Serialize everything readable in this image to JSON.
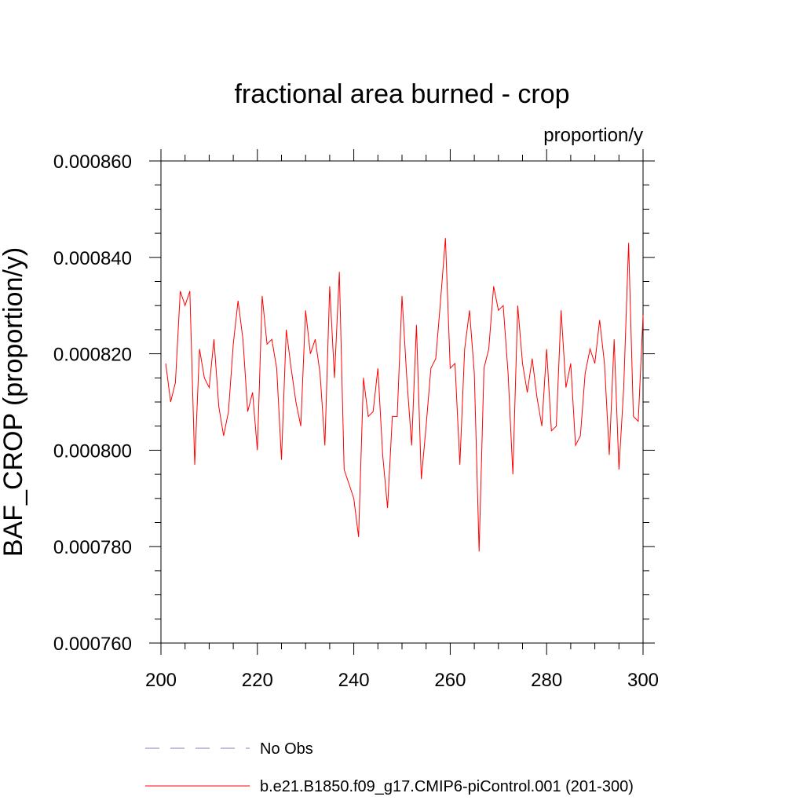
{
  "chart_data": {
    "type": "line",
    "title": "fractional area burned - crop",
    "units_label": "proportion/y",
    "ylabel": "BAF_CROP  (proportion/y)",
    "xlabel": "",
    "xlim": [
      200,
      300
    ],
    "ylim": [
      0.00076,
      0.00086
    ],
    "x_ticks": [
      200,
      220,
      240,
      260,
      280,
      300
    ],
    "x_tick_labels": [
      "200",
      "220",
      "240",
      "260",
      "280",
      "300"
    ],
    "y_ticks": [
      0.00076,
      0.00078,
      0.0008,
      0.00082,
      0.00084,
      0.00086
    ],
    "y_tick_labels": [
      "0.000760",
      "0.000780",
      "0.000800",
      "0.000820",
      "0.000840",
      "0.000860"
    ],
    "series": [
      {
        "name": "b.e21.B1850.f09_g17.CMIP6-piControl.001 (201-300)",
        "color": "#ff0000",
        "style": "solid",
        "x": [
          201,
          202,
          203,
          204,
          205,
          206,
          207,
          208,
          209,
          210,
          211,
          212,
          213,
          214,
          215,
          216,
          217,
          218,
          219,
          220,
          221,
          222,
          223,
          224,
          225,
          226,
          227,
          228,
          229,
          230,
          231,
          232,
          233,
          234,
          235,
          236,
          237,
          238,
          239,
          240,
          241,
          242,
          243,
          244,
          245,
          246,
          247,
          248,
          249,
          250,
          251,
          252,
          253,
          254,
          255,
          256,
          257,
          258,
          259,
          260,
          261,
          262,
          263,
          264,
          265,
          266,
          267,
          268,
          269,
          270,
          271,
          272,
          273,
          274,
          275,
          276,
          277,
          278,
          279,
          280,
          281,
          282,
          283,
          284,
          285,
          286,
          287,
          288,
          289,
          290,
          291,
          292,
          293,
          294,
          295,
          296,
          297,
          298,
          299,
          300
        ],
        "values": [
          0.000818,
          0.00081,
          0.000814,
          0.000833,
          0.00083,
          0.000833,
          0.000797,
          0.000821,
          0.000815,
          0.000813,
          0.000823,
          0.000809,
          0.000803,
          0.000808,
          0.000822,
          0.000831,
          0.000823,
          0.000808,
          0.000812,
          0.0008,
          0.000832,
          0.000822,
          0.000823,
          0.000817,
          0.000798,
          0.000825,
          0.000817,
          0.00081,
          0.000805,
          0.000829,
          0.00082,
          0.000823,
          0.000816,
          0.000801,
          0.000834,
          0.000815,
          0.000837,
          0.000796,
          0.000793,
          0.00079,
          0.000782,
          0.000815,
          0.000807,
          0.000808,
          0.000817,
          0.000799,
          0.000788,
          0.000807,
          0.000807,
          0.000832,
          0.000815,
          0.000801,
          0.000826,
          0.000794,
          0.000805,
          0.000817,
          0.000819,
          0.000831,
          0.000844,
          0.000817,
          0.000818,
          0.000797,
          0.000821,
          0.000829,
          0.000816,
          0.000779,
          0.000817,
          0.000821,
          0.000834,
          0.000829,
          0.00083,
          0.000816,
          0.000795,
          0.00083,
          0.000818,
          0.000812,
          0.000819,
          0.000811,
          0.000805,
          0.000821,
          0.000804,
          0.000805,
          0.000829,
          0.000813,
          0.000818,
          0.000801,
          0.000803,
          0.000816,
          0.000821,
          0.000818,
          0.000827,
          0.000818,
          0.000799,
          0.000823,
          0.000796,
          0.000813,
          0.000843,
          0.000807,
          0.000806,
          0.000828
        ]
      }
    ],
    "legend": [
      {
        "label": "No Obs",
        "color": "#8080c0",
        "style": "dashed"
      },
      {
        "label": "b.e21.B1850.f09_g17.CMIP6-piControl.001 (201-300)",
        "color": "#ff0000",
        "style": "solid"
      }
    ]
  }
}
